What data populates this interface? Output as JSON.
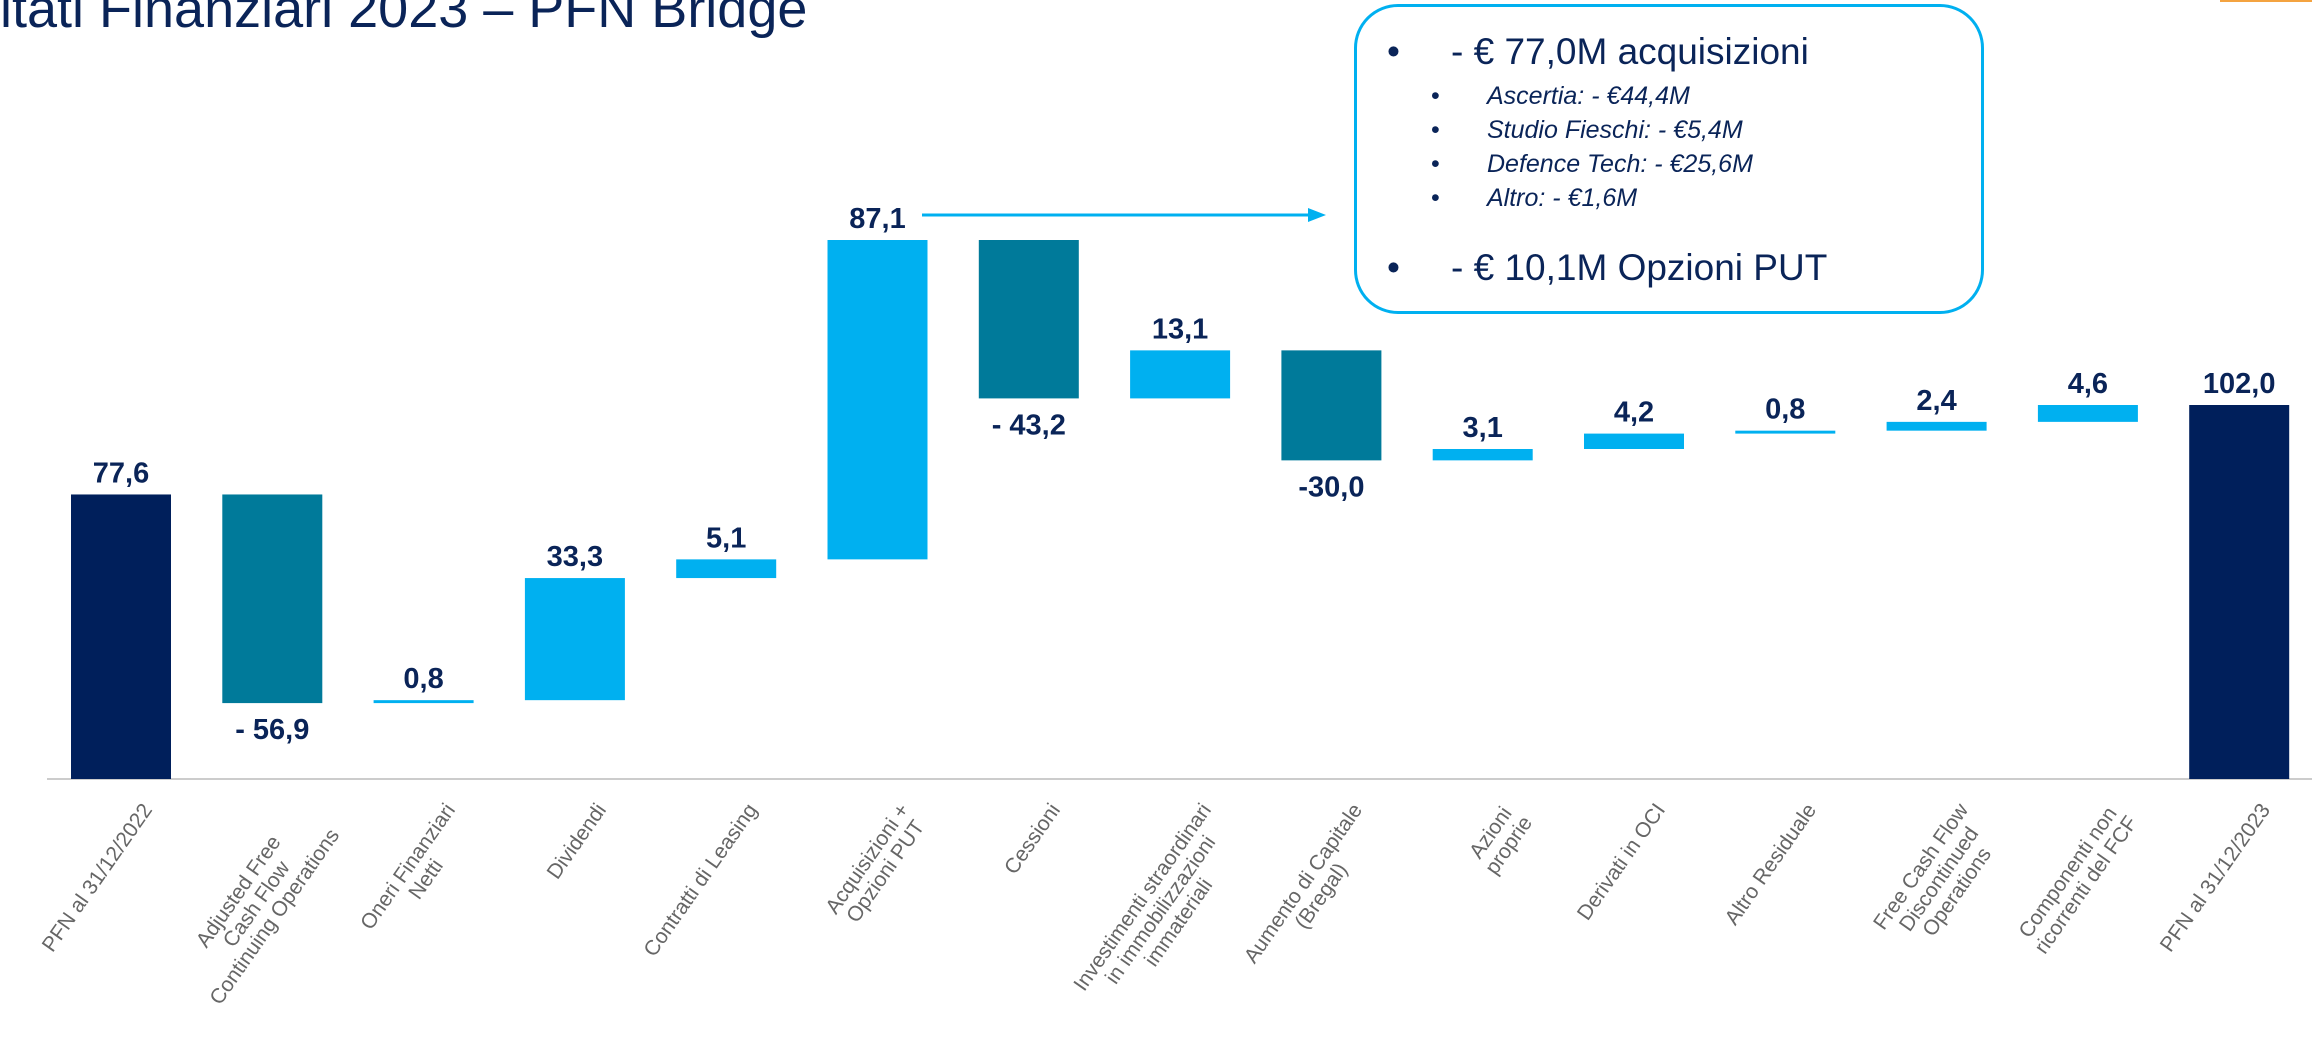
{
  "chart_data": {
    "type": "waterfall",
    "title": "ltati Finanziari 2023 – PFN Bridge",
    "categories": [
      "PFN al 31/12/2022",
      "Adjusted Free\nCash Flow\nContinuing Operations",
      "Oneri Finanziari\nNetti",
      "Dividendi",
      "Contratti di Leasing",
      "Acquisizioni +\nOpzioni PUT",
      "Cessioni",
      "Investimenti straordinari\nin immobilizzazioni\nimmateriali",
      "Aumento di Capitale\n(Bregal)",
      "Azioni\nproprie",
      "Derivati in OCI",
      "Altro Residuale",
      "Free Cash Flow\nDiscontinued\nOperations",
      "Componenti non\nricorrenti del FCF",
      "PFN al 31/12/2023"
    ],
    "values": [
      77.6,
      -56.9,
      0.8,
      33.3,
      5.1,
      87.1,
      -43.2,
      13.1,
      -30.0,
      3.1,
      4.2,
      0.8,
      2.4,
      4.6,
      102.0
    ],
    "value_labels": [
      "77,6",
      "- 56,9",
      "0,8",
      "33,3",
      "5,1",
      "87,1",
      "- 43,2",
      "13,1",
      "-30,0",
      "3,1",
      "4,2",
      "0,8",
      "2,4",
      "4,6",
      "102,0"
    ],
    "colors": [
      "#001f5b",
      "#007a9a",
      "#00b0f0",
      "#00b0f0",
      "#00b0f0",
      "#00b0f0",
      "#007a9a",
      "#00b0f0",
      "#007a9a",
      "#00b0f0",
      "#00b0f0",
      "#00b0f0",
      "#00b0f0",
      "#00b0f0",
      "#001f5b"
    ],
    "annotations": [
      {
        "text": "- € 77,0M acquisizioni",
        "subitems": [
          "Ascertia: - €44,4M",
          "Studio Fieschi: - €5,4M",
          "Defence Tech: - €25,6M",
          "Altro: - €1,6M"
        ]
      },
      {
        "text": "- € 10,1M Opzioni PUT",
        "subitems": []
      }
    ]
  }
}
